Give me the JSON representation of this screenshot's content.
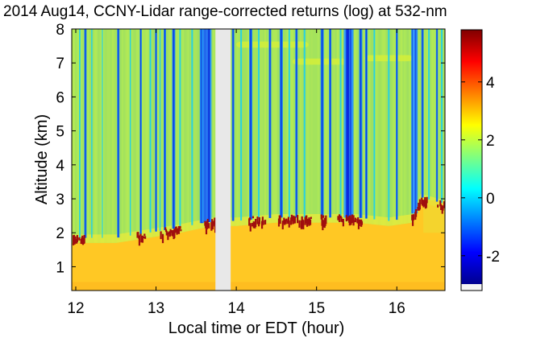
{
  "chart_data": {
    "type": "heatmap",
    "title": "2014 Aug14, CCNY-Lidar range-corrected returns (log) at 532-nm",
    "xlabel": "Local time or EDT (hour)",
    "ylabel": "Altitude (km)",
    "xlim": [
      11.95,
      16.6
    ],
    "ylim": [
      0.3,
      8.0
    ],
    "x_ticks": [
      12,
      13,
      14,
      15,
      16
    ],
    "y_ticks": [
      1,
      2,
      3,
      4,
      5,
      6,
      7,
      8
    ],
    "colorbar": {
      "range": [
        -3.2,
        5.8
      ],
      "ticks": [
        -2,
        0,
        2,
        4
      ],
      "colormap": "jet"
    },
    "data_gap": {
      "x_start": 13.74,
      "x_end": 13.93
    },
    "boundary_layer_top_km": [
      {
        "x": 11.95,
        "y": 1.7
      },
      {
        "x": 12.5,
        "y": 1.7
      },
      {
        "x": 12.9,
        "y": 1.85
      },
      {
        "x": 13.3,
        "y": 2.0
      },
      {
        "x": 13.7,
        "y": 2.2
      },
      {
        "x": 14.0,
        "y": 2.2
      },
      {
        "x": 14.5,
        "y": 2.3
      },
      {
        "x": 15.0,
        "y": 2.3
      },
      {
        "x": 15.5,
        "y": 2.3
      },
      {
        "x": 15.9,
        "y": 2.2
      },
      {
        "x": 16.2,
        "y": 2.3
      },
      {
        "x": 16.3,
        "y": 2.9
      },
      {
        "x": 16.6,
        "y": 2.7
      }
    ],
    "colors": {
      "free_troposphere": "#a8e65a",
      "boundary_layer": "#ffc824",
      "clear_column_low": "#0a2cdc",
      "clear_column_mid": "#1e8cf0",
      "clear_column_cyan": "#28d2e0",
      "cloud_top": "#a00e0e",
      "gap": "#e8e8e8"
    }
  }
}
